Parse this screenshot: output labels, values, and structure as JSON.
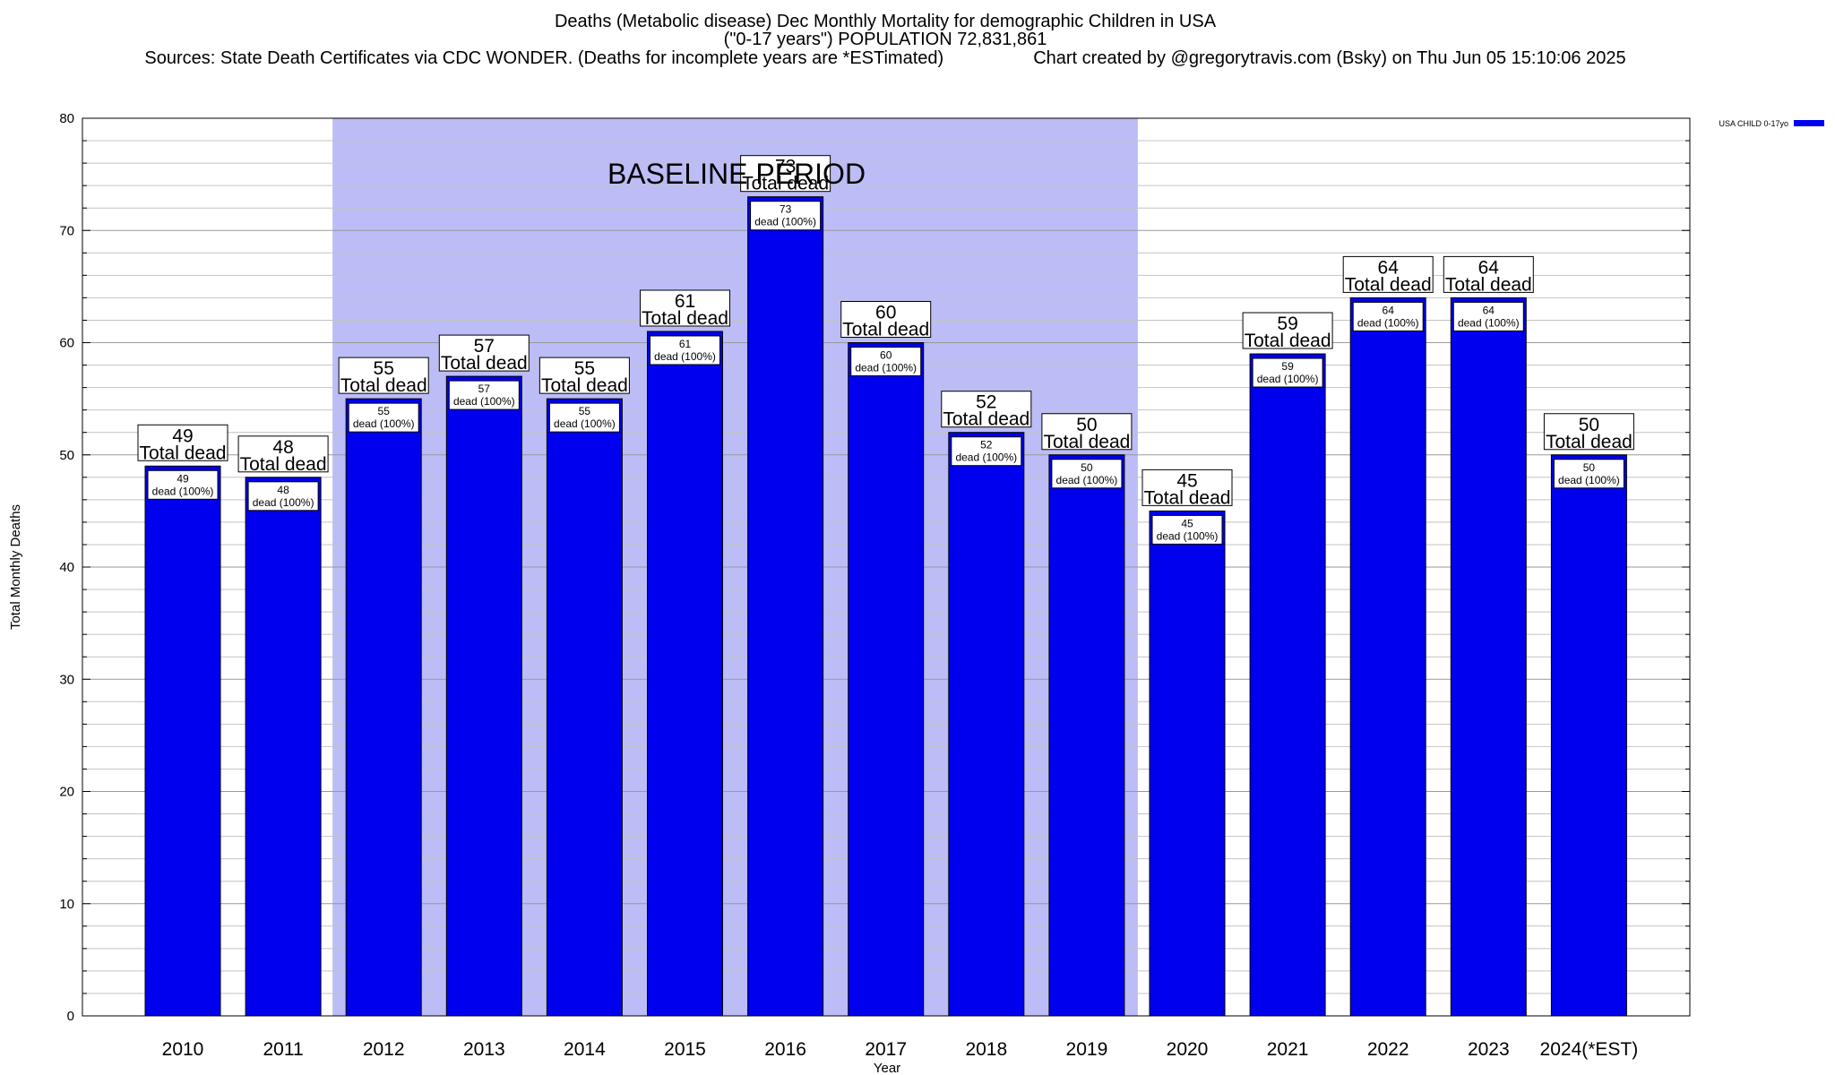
{
  "chart_data": {
    "type": "bar",
    "title_lines": [
      "Deaths (Metabolic disease) Dec Monthly Mortality for demographic Children in USA",
      "(\"0-17 years\") POPULATION 72,831,861",
      "Sources: State Death Certificates via CDC WONDER. (Deaths for incomplete years are *ESTimated)                  Chart created by @gregorytravis.com (Bsky) on Thu Jun 05 15:10:06 2025"
    ],
    "xlabel": "Year",
    "ylabel": "Total Monthly Deaths",
    "ylim": [
      0,
      80
    ],
    "yticks": [
      "0",
      "10",
      "20",
      "30",
      "40",
      "50",
      "60",
      "70",
      "80"
    ],
    "categories": [
      "2010",
      "2011",
      "2012",
      "2013",
      "2014",
      "2015",
      "2016",
      "2017",
      "2018",
      "2019",
      "2020",
      "2021",
      "2022",
      "2023",
      "2024(*EST)"
    ],
    "series": [
      {
        "name": "USA CHILD 0-17yo",
        "color": "#0000ee",
        "values": [
          49,
          48,
          55,
          57,
          55,
          61,
          73,
          60,
          52,
          50,
          45,
          59,
          64,
          64,
          50
        ]
      }
    ],
    "bar_total_label": "Total dead",
    "bar_inner_label": "dead (100%)",
    "baseline": {
      "label": "BASELINE PERIOD",
      "start_category": "2012",
      "end_category": "2019",
      "color": "#bcbcf6"
    },
    "legend_position": "top-right",
    "grid": true
  }
}
